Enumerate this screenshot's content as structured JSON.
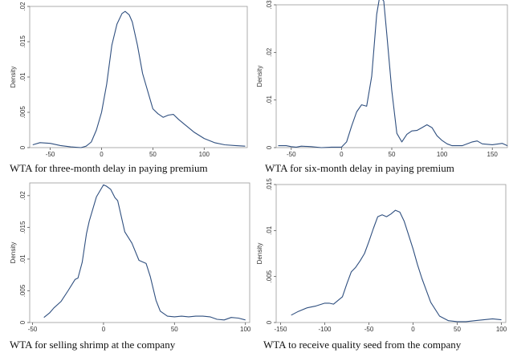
{
  "chart_data": [
    {
      "type": "line",
      "caption": "WTA for three-month delay in paying premium",
      "ylabel": "Density",
      "xlim": [
        -70,
        142
      ],
      "ylim": [
        0,
        0.02
      ],
      "xticks": [
        {
          "v": -50,
          "label": "-50"
        },
        {
          "v": 0,
          "label": "0"
        },
        {
          "v": 50,
          "label": "50"
        },
        {
          "v": 100,
          "label": "100"
        }
      ],
      "yticks": [
        {
          "v": 0,
          "label": "0"
        },
        {
          "v": 0.005,
          "label": ".005"
        },
        {
          "v": 0.01,
          "label": ".01"
        },
        {
          "v": 0.015,
          "label": ".015"
        },
        {
          "v": 0.02,
          "label": ".02"
        }
      ],
      "series": [
        {
          "x": [
            -67,
            -60,
            -50,
            -40,
            -30,
            -20,
            -15,
            -10,
            -5,
            0,
            5,
            10,
            15,
            20,
            23,
            27,
            30,
            35,
            40,
            45,
            50,
            55,
            60,
            65,
            70,
            75,
            80,
            90,
            100,
            110,
            120,
            130,
            140
          ],
          "y": [
            0.0004,
            0.0007,
            0.0006,
            0.0003,
            0.0001,
            0.0,
            0.0002,
            0.0008,
            0.0025,
            0.005,
            0.009,
            0.0145,
            0.0175,
            0.019,
            0.0193,
            0.0188,
            0.0178,
            0.0145,
            0.0105,
            0.008,
            0.0055,
            0.0048,
            0.0043,
            0.0046,
            0.0047,
            0.004,
            0.0034,
            0.0022,
            0.0013,
            0.0007,
            0.0004,
            0.0003,
            0.0002
          ]
        }
      ]
    },
    {
      "type": "line",
      "caption": "WTA for six-month delay in paying premium",
      "ylabel": "Density",
      "xlim": [
        -65,
        165
      ],
      "ylim": [
        0,
        0.03
      ],
      "xticks": [
        {
          "v": -50,
          "label": "-50"
        },
        {
          "v": 0,
          "label": "0"
        },
        {
          "v": 50,
          "label": "50"
        },
        {
          "v": 100,
          "label": "100"
        },
        {
          "v": 150,
          "label": "150"
        }
      ],
      "yticks": [
        {
          "v": 0,
          "label": "0"
        },
        {
          "v": 0.01,
          "label": ".01"
        },
        {
          "v": 0.02,
          "label": ".02"
        },
        {
          "v": 0.03,
          "label": ".03"
        }
      ],
      "series": [
        {
          "x": [
            -63,
            -55,
            -50,
            -45,
            -40,
            -30,
            -20,
            -10,
            0,
            5,
            10,
            15,
            20,
            25,
            30,
            35,
            38,
            42,
            45,
            50,
            55,
            60,
            65,
            70,
            75,
            80,
            85,
            90,
            95,
            100,
            105,
            110,
            120,
            130,
            135,
            140,
            150,
            160,
            165
          ],
          "y": [
            0.0004,
            0.0004,
            0.0002,
            0.0001,
            0.0003,
            0.0002,
            0.0,
            0.0001,
            0.0001,
            0.0012,
            0.0045,
            0.0075,
            0.009,
            0.0087,
            0.015,
            0.028,
            0.0318,
            0.0308,
            0.024,
            0.012,
            0.003,
            0.0012,
            0.0028,
            0.0035,
            0.0036,
            0.0042,
            0.0048,
            0.0042,
            0.0025,
            0.0015,
            0.0008,
            0.0004,
            0.0004,
            0.0012,
            0.0014,
            0.0008,
            0.0006,
            0.0009,
            0.0004
          ]
        }
      ]
    },
    {
      "type": "line",
      "caption": "WTA for selling shrimp at the company",
      "ylabel": "Density",
      "xlim": [
        -52,
        103
      ],
      "ylim": [
        0,
        0.022
      ],
      "xticks": [
        {
          "v": -50,
          "label": "-50"
        },
        {
          "v": 0,
          "label": "0"
        },
        {
          "v": 50,
          "label": "50"
        },
        {
          "v": 100,
          "label": "100"
        }
      ],
      "yticks": [
        {
          "v": 0,
          "label": "0"
        },
        {
          "v": 0.005,
          "label": ".005"
        },
        {
          "v": 0.01,
          "label": ".01"
        },
        {
          "v": 0.015,
          "label": ".015"
        },
        {
          "v": 0.02,
          "label": ".02"
        }
      ],
      "series": [
        {
          "x": [
            -42,
            -38,
            -35,
            -30,
            -25,
            -20,
            -18,
            -15,
            -12,
            -10,
            -5,
            0,
            2,
            5,
            8,
            10,
            15,
            20,
            25,
            30,
            33,
            37,
            40,
            45,
            50,
            55,
            60,
            65,
            70,
            75,
            80,
            85,
            90,
            95,
            100
          ],
          "y": [
            0.0008,
            0.0015,
            0.0023,
            0.0033,
            0.005,
            0.0068,
            0.007,
            0.0095,
            0.014,
            0.016,
            0.0198,
            0.0217,
            0.0215,
            0.021,
            0.0197,
            0.0192,
            0.0143,
            0.0125,
            0.0098,
            0.0093,
            0.0072,
            0.0035,
            0.0018,
            0.001,
            0.0009,
            0.001,
            0.0009,
            0.001,
            0.001,
            0.0009,
            0.0005,
            0.0004,
            0.0008,
            0.0007,
            0.0004
          ]
        }
      ]
    },
    {
      "type": "line",
      "caption": "WTA to receive quality seed from the company",
      "ylabel": "Density",
      "xlim": [
        -155,
        105
      ],
      "ylim": [
        0,
        0.015
      ],
      "xticks": [
        {
          "v": -150,
          "label": "-150"
        },
        {
          "v": -100,
          "label": "-100"
        },
        {
          "v": -50,
          "label": "-50"
        },
        {
          "v": 0,
          "label": "0"
        },
        {
          "v": 50,
          "label": "50"
        },
        {
          "v": 100,
          "label": "100"
        }
      ],
      "yticks": [
        {
          "v": 0,
          "label": "0"
        },
        {
          "v": 0.005,
          "label": ".005"
        },
        {
          "v": 0.01,
          "label": ".01"
        },
        {
          "v": 0.015,
          "label": ".015"
        }
      ],
      "series": [
        {
          "x": [
            -138,
            -130,
            -120,
            -110,
            -100,
            -95,
            -90,
            -80,
            -75,
            -70,
            -65,
            -60,
            -55,
            -50,
            -45,
            -40,
            -35,
            -30,
            -25,
            -20,
            -15,
            -10,
            -5,
            0,
            5,
            10,
            15,
            20,
            30,
            40,
            50,
            60,
            70,
            80,
            90,
            100
          ],
          "y": [
            0.0008,
            0.0012,
            0.0016,
            0.0018,
            0.0021,
            0.0021,
            0.002,
            0.0028,
            0.0042,
            0.0055,
            0.006,
            0.0067,
            0.0075,
            0.0088,
            0.0102,
            0.0115,
            0.0117,
            0.0115,
            0.0118,
            0.0122,
            0.012,
            0.011,
            0.0095,
            0.008,
            0.0063,
            0.0048,
            0.0035,
            0.0022,
            0.0007,
            0.0002,
            0.0001,
            0.0001,
            0.0002,
            0.0003,
            0.0004,
            0.0003
          ]
        }
      ]
    }
  ]
}
